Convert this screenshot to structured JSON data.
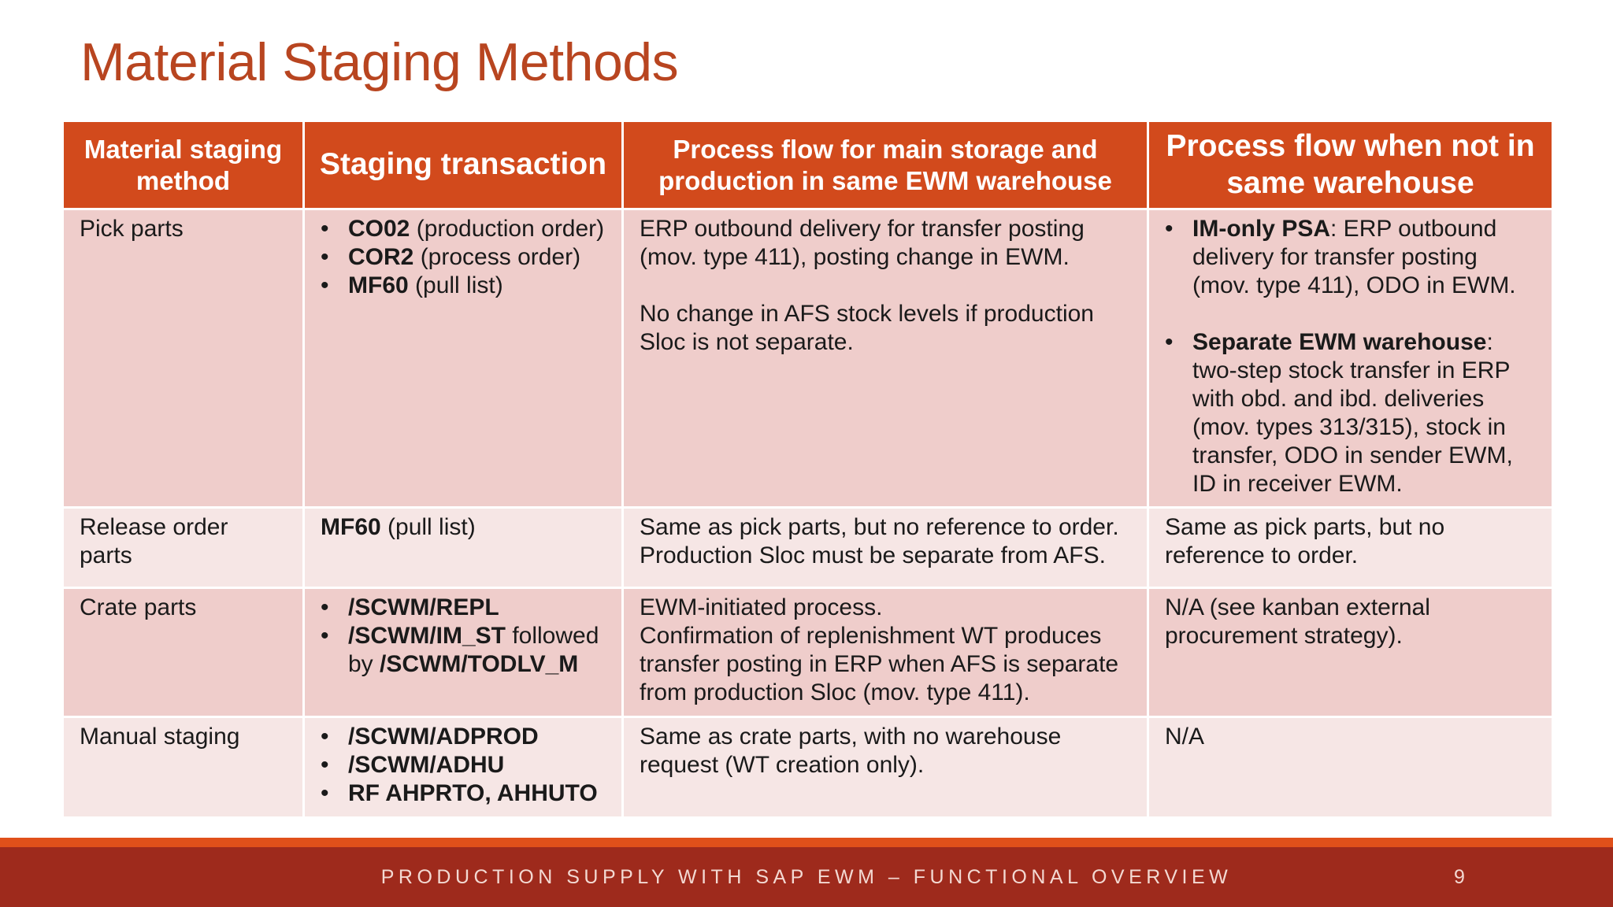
{
  "title": "Material Staging Methods",
  "headers": [
    "Material staging method",
    "Staging transaction",
    "Process flow for main storage and production in same EWM warehouse",
    "Process flow when not in same warehouse"
  ],
  "rows": [
    {
      "method": "Pick parts",
      "transactions": [
        {
          "code": "CO02",
          "rest": " (production order)"
        },
        {
          "code": "COR2",
          "rest": " (process order)"
        },
        {
          "code": "MF60",
          "rest": " (pull list)"
        }
      ],
      "same_wh": [
        "ERP outbound delivery for transfer posting (mov. type 411), posting change in EWM.",
        "No change in AFS stock levels if production Sloc is not separate."
      ],
      "diff_wh": [
        {
          "bold": "IM-only PSA",
          "rest": ": ERP outbound delivery for transfer posting (mov. type 411), ODO in EWM."
        },
        {
          "bold": "Separate EWM warehouse",
          "rest": ": two-step stock transfer in ERP with obd. and ibd. deliveries (mov. types 313/315), stock in transfer, ODO in sender EWM, ID in receiver EWM."
        }
      ]
    },
    {
      "method": "Release order parts",
      "transaction": {
        "code": "MF60",
        "rest": " (pull list)"
      },
      "same_wh": "Same as pick parts, but no reference to order. Production Sloc must be separate from AFS.",
      "diff_wh": "Same as pick parts, but no reference to order."
    },
    {
      "method": "Crate parts",
      "transactions": [
        {
          "code": "/SCWM/REPL"
        },
        {
          "code": "/SCWM/IM_ST",
          "mid": " followed by ",
          "code2": "/SCWM/TODLV_M"
        }
      ],
      "same_wh": [
        "EWM-initiated process.",
        "Confirmation of replenishment WT produces transfer posting in ERP when AFS is separate from production Sloc (mov. type 411)."
      ],
      "diff_wh": "N/A (see kanban external procurement strategy)."
    },
    {
      "method": "Manual staging",
      "transactions": [
        {
          "code": "/SCWM/ADPROD"
        },
        {
          "code": "/SCWM/ADHU"
        },
        {
          "code": "RF AHPRTO, AHHUTO"
        }
      ],
      "same_wh": "Same as crate parts, with no warehouse request (WT creation only).",
      "diff_wh": "N/A"
    }
  ],
  "footer": {
    "text": "PRODUCTION SUPPLY WITH SAP EWM – FUNCTIONAL OVERVIEW",
    "page": "9"
  },
  "colors": {
    "title": "#b84520",
    "header_bg": "#d24a1c",
    "row_odd": "#efcdcb",
    "row_even": "#f6e6e5",
    "footer_bg": "#9e2a1c",
    "footer_strip": "#e0501a"
  }
}
